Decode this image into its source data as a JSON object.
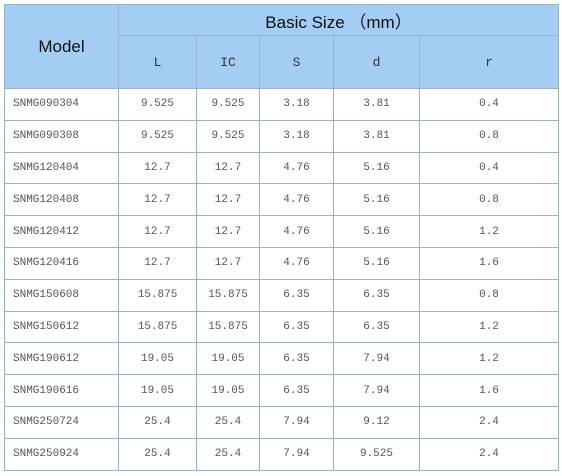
{
  "table": {
    "header": {
      "model": "Model",
      "group": "Basic Size （mm）",
      "columns": [
        "L",
        "IC",
        "S",
        "d",
        "r"
      ]
    },
    "rows": [
      [
        "SNMG090304",
        "9.525",
        "9.525",
        "3.18",
        "3.81",
        "0.4"
      ],
      [
        "SNMG090308",
        "9.525",
        "9.525",
        "3.18",
        "3.81",
        "0.8"
      ],
      [
        "SNMG120404",
        "12.7",
        "12.7",
        "4.76",
        "5.16",
        "0.4"
      ],
      [
        "SNMG120408",
        "12.7",
        "12.7",
        "4.76",
        "5.16",
        "0.8"
      ],
      [
        "SNMG120412",
        "12.7",
        "12.7",
        "4.76",
        "5.16",
        "1.2"
      ],
      [
        "SNMG120416",
        "12.7",
        "12.7",
        "4.76",
        "5.16",
        "1.6"
      ],
      [
        "SNMG150608",
        "15.875",
        "15.875",
        "6.35",
        "6.35",
        "0.8"
      ],
      [
        "SNMG150612",
        "15.875",
        "15.875",
        "6.35",
        "6.35",
        "1.2"
      ],
      [
        "SNMG190612",
        "19.05",
        "19.05",
        "6.35",
        "7.94",
        "1.2"
      ],
      [
        "SNMG190616",
        "19.05",
        "19.05",
        "6.35",
        "7.94",
        "1.6"
      ],
      [
        "SNMG250724",
        "25.4",
        "25.4",
        "7.94",
        "9.12",
        "2.4"
      ],
      [
        "SNMG250924",
        "25.4",
        "25.4",
        "7.94",
        "9.525",
        "2.4"
      ]
    ]
  }
}
